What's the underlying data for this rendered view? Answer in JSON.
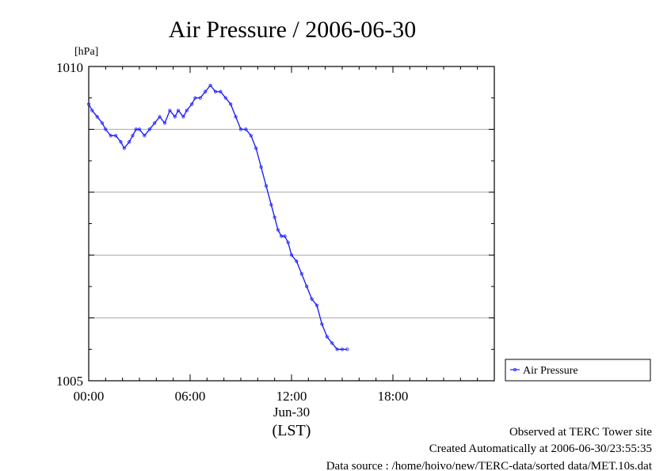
{
  "chart_data": {
    "type": "line",
    "title": "Air Pressure / 2006-06-30",
    "ylabel": "[hPa]",
    "y_tick_labels": [
      "1005",
      "1010"
    ],
    "ylim": [
      1005,
      1010
    ],
    "xlim_hours": [
      0,
      24
    ],
    "x_tick_labels": [
      "00:00",
      "06:00",
      "12:00",
      "18:00"
    ],
    "x_date_label": "Jun-30",
    "x_unit_label": "(LST)",
    "grid": "horizontal",
    "legend_position": "right",
    "series": [
      {
        "name": "Air Pressure",
        "color": "#2020ff",
        "x_hours": [
          0.0,
          0.2,
          0.5,
          0.8,
          1.0,
          1.3,
          1.6,
          1.9,
          2.1,
          2.4,
          2.6,
          2.8,
          3.0,
          3.3,
          3.6,
          3.9,
          4.2,
          4.5,
          4.8,
          5.1,
          5.3,
          5.6,
          5.8,
          6.1,
          6.3,
          6.6,
          6.9,
          7.2,
          7.5,
          7.8,
          8.1,
          8.4,
          8.7,
          9.0,
          9.3,
          9.6,
          9.9,
          10.2,
          10.5,
          10.8,
          11.0,
          11.2,
          11.4,
          11.6,
          11.8,
          12.0,
          12.3,
          12.6,
          12.9,
          13.2,
          13.5,
          13.8,
          14.1,
          14.4,
          14.7,
          15.0,
          15.3
        ],
        "values": [
          1009.4,
          1009.3,
          1009.2,
          1009.1,
          1009.0,
          1008.9,
          1008.9,
          1008.8,
          1008.7,
          1008.8,
          1008.9,
          1009.0,
          1009.0,
          1008.9,
          1009.0,
          1009.1,
          1009.2,
          1009.1,
          1009.3,
          1009.2,
          1009.3,
          1009.2,
          1009.3,
          1009.4,
          1009.5,
          1009.5,
          1009.6,
          1009.7,
          1009.6,
          1009.6,
          1009.5,
          1009.4,
          1009.2,
          1009.0,
          1009.0,
          1008.9,
          1008.7,
          1008.4,
          1008.1,
          1007.8,
          1007.6,
          1007.4,
          1007.3,
          1007.3,
          1007.2,
          1007.0,
          1006.9,
          1006.7,
          1006.5,
          1006.3,
          1006.2,
          1005.9,
          1005.7,
          1005.6,
          1005.5,
          1005.5,
          1005.5
        ]
      }
    ]
  },
  "legend": {
    "label": "Air Pressure"
  },
  "footer": {
    "line1": "Observed at TERC Tower site",
    "line2": "Created Automatically at 2006-06-30/23:55:35",
    "line3": "Data source : /home/hoivo/new/TERC-data/sorted  data/MET.10s.dat"
  }
}
